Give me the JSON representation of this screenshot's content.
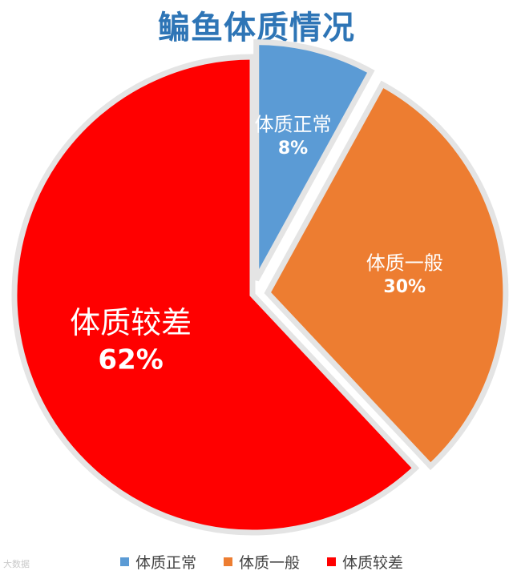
{
  "chart_data": {
    "type": "pie",
    "title": "鳊鱼体质情况",
    "slices": [
      {
        "label": "体质正常",
        "value": 8,
        "value_label": "8%",
        "color": "#5b9bd5"
      },
      {
        "label": "体质一般",
        "value": 30,
        "value_label": "30%",
        "color": "#ed7d31"
      },
      {
        "label": "体质较差",
        "value": 62,
        "value_label": "62%",
        "color": "#ff0000"
      }
    ],
    "legend": {
      "position": "bottom"
    }
  },
  "watermark": "大数据"
}
